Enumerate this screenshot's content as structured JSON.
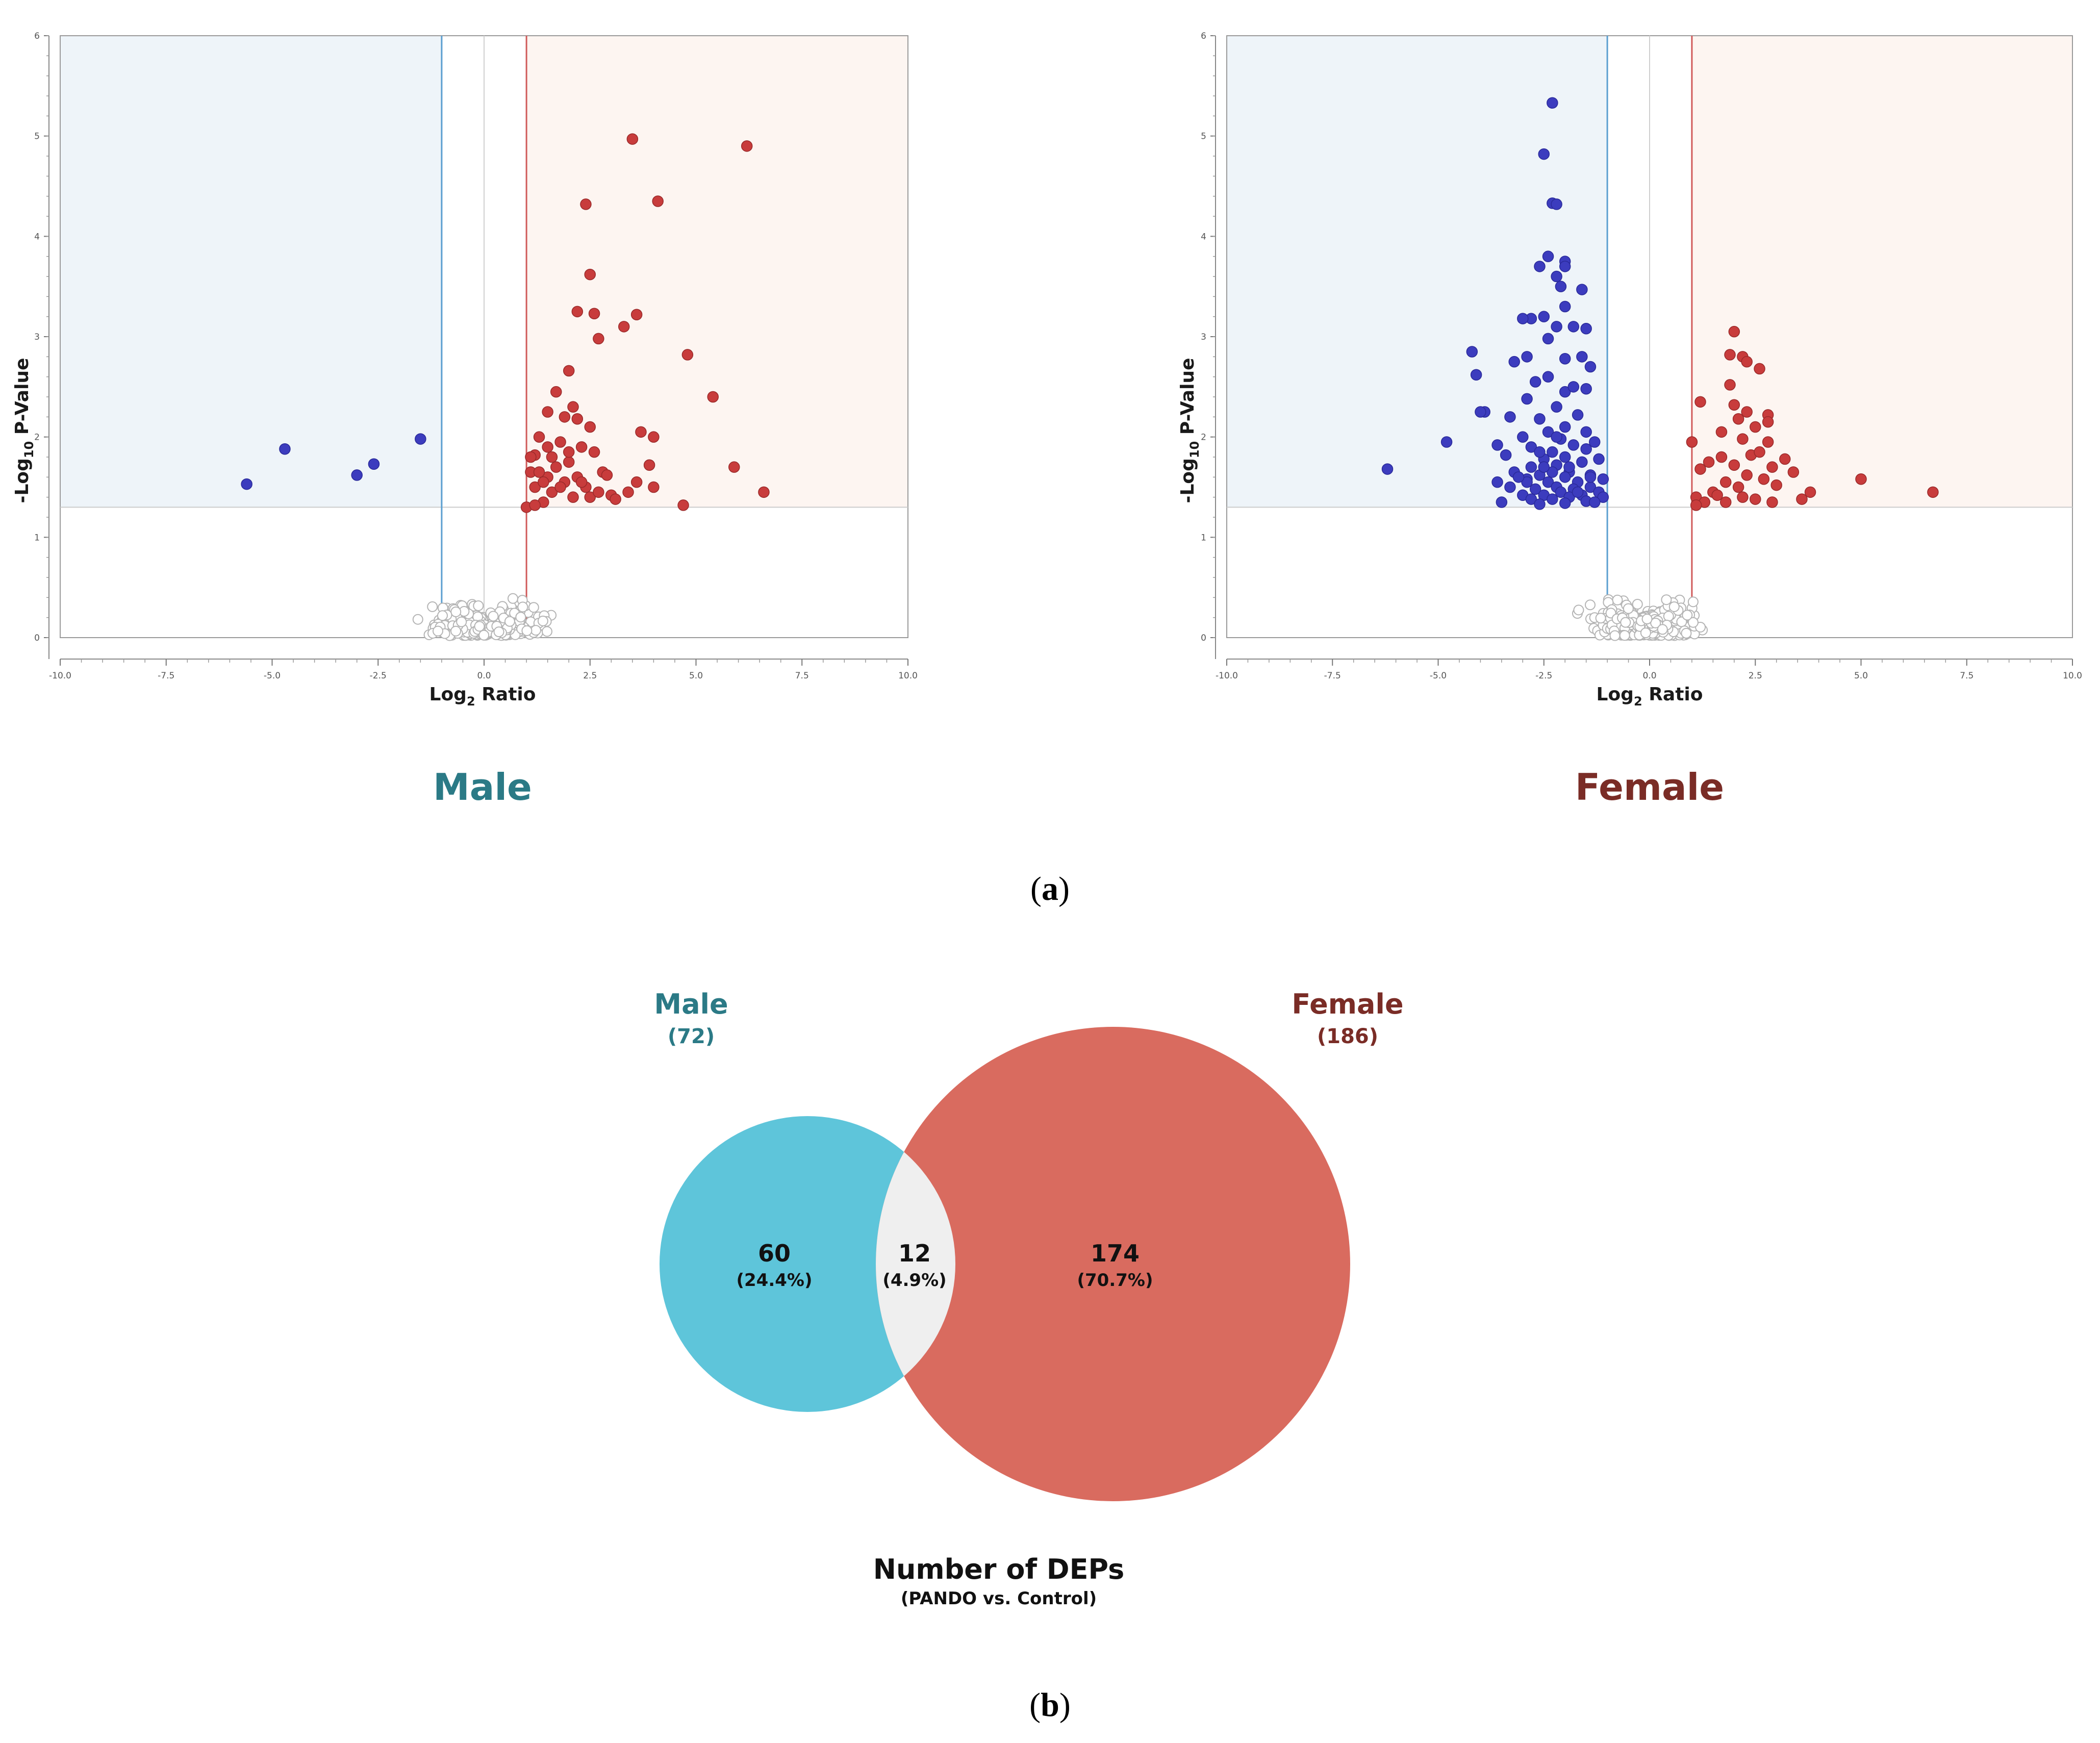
{
  "panel_a": {
    "label_open": "(",
    "label_letter": "a",
    "label_close": ")"
  },
  "panel_b": {
    "label_open": "(",
    "label_letter": "b",
    "label_close": ")"
  },
  "colors": {
    "up": "#c83c3c",
    "down": "#3c3cbe",
    "ns_stroke": "#b4b4b4",
    "down_region": "#eef4f9",
    "up_region": "#fdf5f1",
    "male_title": "#2b7a86",
    "female_title": "#7a2c26",
    "male_circle": "#5ec5da",
    "female_circle": "#d96b5f",
    "overlap": "#efefef"
  },
  "chart_data": [
    {
      "type": "scatter",
      "title": "Male",
      "xlabel_main": "Log",
      "xlabel_sub": "2",
      "xlabel_rest": " Ratio",
      "ylabel_main": "-Log",
      "ylabel_sub": "10",
      "ylabel_rest": " P-Value",
      "xlim": [
        -10,
        10
      ],
      "ylim": [
        0,
        6
      ],
      "xticks": [
        "-10.0",
        "-7.5",
        "-5.0",
        "-2.5",
        "0.0",
        "2.5",
        "5.0",
        "7.5",
        "10.0"
      ],
      "yticks": [
        "0",
        "1",
        "2",
        "3",
        "4",
        "5",
        "6"
      ],
      "fc_threshold": [
        -1,
        1
      ],
      "p_threshold": 1.3,
      "up": [
        [
          3.5,
          4.97
        ],
        [
          6.2,
          4.9
        ],
        [
          4.1,
          4.35
        ],
        [
          2.4,
          4.32
        ],
        [
          2.5,
          3.62
        ],
        [
          2.6,
          3.23
        ],
        [
          2.2,
          3.25
        ],
        [
          3.3,
          3.1
        ],
        [
          3.6,
          3.22
        ],
        [
          2.7,
          2.98
        ],
        [
          4.8,
          2.82
        ],
        [
          2.0,
          2.66
        ],
        [
          5.4,
          2.4
        ],
        [
          1.7,
          2.45
        ],
        [
          2.1,
          2.3
        ],
        [
          1.5,
          2.25
        ],
        [
          1.9,
          2.2
        ],
        [
          2.2,
          2.18
        ],
        [
          2.5,
          2.1
        ],
        [
          3.7,
          2.05
        ],
        [
          4.0,
          2.0
        ],
        [
          1.3,
          2.0
        ],
        [
          1.8,
          1.95
        ],
        [
          2.3,
          1.9
        ],
        [
          2.6,
          1.85
        ],
        [
          1.6,
          1.8
        ],
        [
          1.2,
          1.82
        ],
        [
          1.1,
          1.8
        ],
        [
          2.0,
          1.75
        ],
        [
          3.9,
          1.72
        ],
        [
          5.9,
          1.7
        ],
        [
          2.8,
          1.65
        ],
        [
          1.5,
          1.6
        ],
        [
          3.6,
          1.55
        ],
        [
          2.2,
          1.6
        ],
        [
          1.2,
          1.5
        ],
        [
          1.6,
          1.45
        ],
        [
          2.1,
          1.4
        ],
        [
          3.4,
          1.45
        ],
        [
          4.0,
          1.5
        ],
        [
          6.6,
          1.45
        ],
        [
          1.4,
          1.35
        ],
        [
          1.0,
          1.3
        ],
        [
          1.2,
          1.32
        ],
        [
          4.7,
          1.32
        ],
        [
          2.5,
          1.4
        ],
        [
          3.0,
          1.42
        ],
        [
          1.9,
          1.55
        ],
        [
          2.4,
          1.5
        ],
        [
          2.9,
          1.62
        ],
        [
          1.1,
          1.65
        ],
        [
          1.7,
          1.7
        ],
        [
          2.3,
          1.55
        ],
        [
          1.4,
          1.55
        ],
        [
          2.7,
          1.45
        ],
        [
          1.8,
          1.5
        ],
        [
          3.1,
          1.38
        ],
        [
          1.3,
          1.65
        ],
        [
          2.0,
          1.85
        ],
        [
          1.5,
          1.9
        ]
      ],
      "down": [
        [
          -1.5,
          1.98
        ],
        [
          -4.7,
          1.88
        ],
        [
          -2.6,
          1.73
        ],
        [
          -3.0,
          1.62
        ],
        [
          -5.6,
          1.53
        ]
      ]
    },
    {
      "type": "scatter",
      "title": "Female",
      "xlabel_main": "Log",
      "xlabel_sub": "2",
      "xlabel_rest": " Ratio",
      "ylabel_main": "-Log",
      "ylabel_sub": "10",
      "ylabel_rest": " P-Value",
      "xlim": [
        -10,
        10
      ],
      "ylim": [
        0,
        6
      ],
      "xticks": [
        "-10.0",
        "-7.5",
        "-5.0",
        "-2.5",
        "0.0",
        "2.5",
        "5.0",
        "7.5",
        "10.0"
      ],
      "yticks": [
        "0",
        "1",
        "2",
        "3",
        "4",
        "5",
        "6"
      ],
      "fc_threshold": [
        -1,
        1
      ],
      "p_threshold": 1.3,
      "up": [
        [
          2.0,
          3.05
        ],
        [
          1.9,
          2.82
        ],
        [
          2.2,
          2.8
        ],
        [
          2.3,
          2.75
        ],
        [
          2.6,
          2.68
        ],
        [
          1.9,
          2.52
        ],
        [
          2.3,
          2.25
        ],
        [
          2.0,
          2.32
        ],
        [
          2.8,
          2.22
        ],
        [
          1.2,
          2.35
        ],
        [
          2.1,
          2.18
        ],
        [
          2.8,
          2.15
        ],
        [
          1.7,
          2.05
        ],
        [
          2.5,
          2.1
        ],
        [
          2.2,
          1.98
        ],
        [
          1.0,
          1.95
        ],
        [
          2.8,
          1.95
        ],
        [
          2.4,
          1.82
        ],
        [
          1.7,
          1.8
        ],
        [
          2.6,
          1.85
        ],
        [
          3.2,
          1.78
        ],
        [
          1.4,
          1.75
        ],
        [
          2.0,
          1.72
        ],
        [
          1.2,
          1.68
        ],
        [
          2.9,
          1.7
        ],
        [
          3.4,
          1.65
        ],
        [
          2.3,
          1.62
        ],
        [
          1.8,
          1.55
        ],
        [
          2.7,
          1.58
        ],
        [
          5.0,
          1.58
        ],
        [
          3.0,
          1.52
        ],
        [
          1.5,
          1.45
        ],
        [
          2.1,
          1.5
        ],
        [
          3.8,
          1.45
        ],
        [
          6.7,
          1.45
        ],
        [
          1.1,
          1.4
        ],
        [
          3.6,
          1.38
        ],
        [
          1.6,
          1.42
        ],
        [
          2.5,
          1.38
        ],
        [
          2.9,
          1.35
        ],
        [
          1.3,
          1.35
        ],
        [
          1.8,
          1.35
        ],
        [
          2.2,
          1.4
        ],
        [
          1.1,
          1.32
        ]
      ],
      "down": [
        [
          -2.3,
          5.33
        ],
        [
          -2.5,
          4.82
        ],
        [
          -2.3,
          4.33
        ],
        [
          -2.2,
          4.32
        ],
        [
          -2.4,
          3.8
        ],
        [
          -2.0,
          3.75
        ],
        [
          -2.6,
          3.7
        ],
        [
          -2.0,
          3.7
        ],
        [
          -2.2,
          3.6
        ],
        [
          -2.1,
          3.5
        ],
        [
          -1.6,
          3.47
        ],
        [
          -2.0,
          3.3
        ],
        [
          -2.8,
          3.18
        ],
        [
          -3.0,
          3.18
        ],
        [
          -2.5,
          3.2
        ],
        [
          -2.2,
          3.1
        ],
        [
          -1.8,
          3.1
        ],
        [
          -1.5,
          3.08
        ],
        [
          -2.4,
          2.98
        ],
        [
          -2.9,
          2.8
        ],
        [
          -3.2,
          2.75
        ],
        [
          -4.2,
          2.85
        ],
        [
          -2.0,
          2.78
        ],
        [
          -1.6,
          2.8
        ],
        [
          -1.4,
          2.7
        ],
        [
          -4.1,
          2.62
        ],
        [
          -2.4,
          2.6
        ],
        [
          -2.7,
          2.55
        ],
        [
          -2.0,
          2.45
        ],
        [
          -1.8,
          2.5
        ],
        [
          -1.5,
          2.48
        ],
        [
          -2.9,
          2.38
        ],
        [
          -2.2,
          2.3
        ],
        [
          -3.9,
          2.25
        ],
        [
          -4.0,
          2.25
        ],
        [
          -3.3,
          2.2
        ],
        [
          -2.6,
          2.18
        ],
        [
          -1.7,
          2.22
        ],
        [
          -2.0,
          2.1
        ],
        [
          -2.4,
          2.05
        ],
        [
          -3.0,
          2.0
        ],
        [
          -1.5,
          2.05
        ],
        [
          -2.1,
          1.98
        ],
        [
          -4.8,
          1.95
        ],
        [
          -3.6,
          1.92
        ],
        [
          -2.8,
          1.9
        ],
        [
          -1.8,
          1.92
        ],
        [
          -1.3,
          1.95
        ],
        [
          -2.3,
          1.85
        ],
        [
          -3.4,
          1.82
        ],
        [
          -2.5,
          1.78
        ],
        [
          -2.0,
          1.8
        ],
        [
          -1.6,
          1.75
        ],
        [
          -1.2,
          1.78
        ],
        [
          -6.2,
          1.68
        ],
        [
          -2.8,
          1.7
        ],
        [
          -2.2,
          1.72
        ],
        [
          -3.2,
          1.65
        ],
        [
          -2.6,
          1.62
        ],
        [
          -1.9,
          1.65
        ],
        [
          -1.4,
          1.62
        ],
        [
          -3.6,
          1.55
        ],
        [
          -2.9,
          1.58
        ],
        [
          -2.4,
          1.55
        ],
        [
          -2.0,
          1.6
        ],
        [
          -1.7,
          1.55
        ],
        [
          -1.1,
          1.58
        ],
        [
          -3.3,
          1.5
        ],
        [
          -2.7,
          1.48
        ],
        [
          -2.2,
          1.5
        ],
        [
          -1.8,
          1.48
        ],
        [
          -1.4,
          1.5
        ],
        [
          -3.0,
          1.42
        ],
        [
          -2.5,
          1.42
        ],
        [
          -2.1,
          1.45
        ],
        [
          -1.6,
          1.42
        ],
        [
          -1.2,
          1.45
        ],
        [
          -3.5,
          1.35
        ],
        [
          -2.8,
          1.38
        ],
        [
          -2.3,
          1.38
        ],
        [
          -1.9,
          1.4
        ],
        [
          -1.5,
          1.36
        ],
        [
          -1.1,
          1.4
        ],
        [
          -2.6,
          1.33
        ],
        [
          -2.0,
          1.34
        ],
        [
          -1.3,
          1.35
        ],
        [
          -2.9,
          1.55
        ],
        [
          -2.3,
          1.65
        ],
        [
          -1.9,
          1.7
        ],
        [
          -2.6,
          1.85
        ],
        [
          -1.5,
          1.88
        ],
        [
          -2.2,
          2.0
        ],
        [
          -1.4,
          1.6
        ],
        [
          -2.5,
          1.7
        ],
        [
          -3.1,
          1.6
        ],
        [
          -1.7,
          1.45
        ]
      ]
    },
    {
      "type": "venn",
      "title": "Number of DEPs",
      "subtitle": "(PANDO vs. Control)",
      "sets": [
        {
          "name": "Male",
          "total_label": "(72)",
          "total": 72,
          "only": 60,
          "only_label": "60",
          "only_pct": "(24.4%)"
        },
        {
          "name": "Female",
          "total_label": "(186)",
          "total": 186,
          "only": 174,
          "only_label": "174",
          "only_pct": "(70.7%)"
        }
      ],
      "overlap": {
        "count": 12,
        "count_label": "12",
        "pct": "(4.9%)"
      }
    }
  ]
}
